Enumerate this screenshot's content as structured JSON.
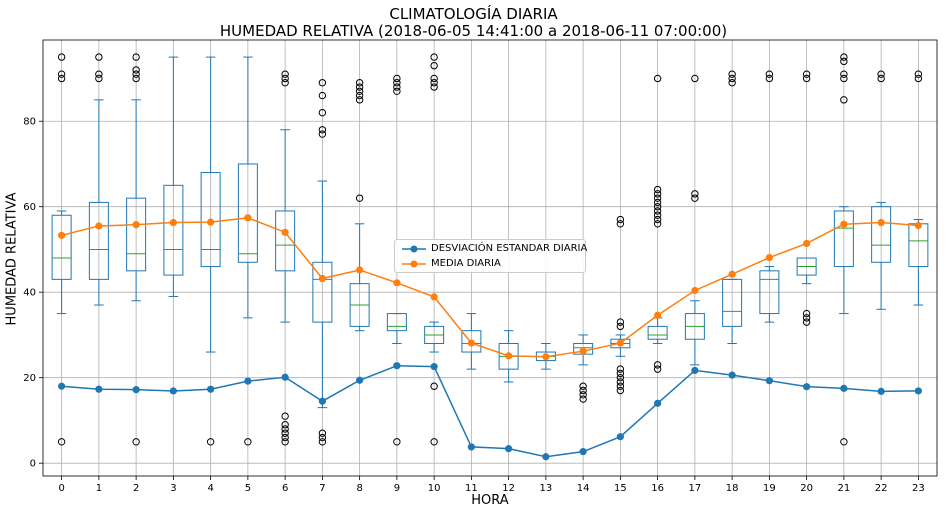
{
  "chart_data": {
    "type": "box+line",
    "title": "CLIMATOLOGÍA DIARIA",
    "subtitle": "HUMEDAD RELATIVA (2018-06-05 14:41:00 a 2018-06-11 07:00:00)",
    "xlabel": "HORA",
    "ylabel": "HUMEDAD RELATIVA",
    "categories": [
      "0",
      "1",
      "2",
      "3",
      "4",
      "5",
      "6",
      "7",
      "8",
      "9",
      "10",
      "11",
      "12",
      "13",
      "14",
      "15",
      "16",
      "17",
      "18",
      "19",
      "20",
      "21",
      "22",
      "23"
    ],
    "y_ticks": [
      0,
      20,
      40,
      60,
      80
    ],
    "ylim": [
      -3,
      99
    ],
    "grid": true,
    "legend_position": "center",
    "colors": {
      "box": "#1f77b4",
      "median": "#2ca02c",
      "std": "#1f77b4",
      "mean": "#ff7f0e"
    },
    "boxes": [
      {
        "q1": 43,
        "median": 48,
        "q3": 58,
        "whislo": 35,
        "whishi": 59,
        "fliers": [
          5,
          90,
          91,
          95
        ]
      },
      {
        "q1": 43,
        "median": 50,
        "q3": 61,
        "whislo": 37,
        "whishi": 85,
        "fliers": [
          90,
          91,
          95
        ]
      },
      {
        "q1": 45,
        "median": 49,
        "q3": 62,
        "whislo": 38,
        "whishi": 85,
        "fliers": [
          5,
          90,
          91,
          92,
          95
        ]
      },
      {
        "q1": 44,
        "median": 50,
        "q3": 65,
        "whislo": 39,
        "whishi": 95,
        "fliers": []
      },
      {
        "q1": 46,
        "median": 50,
        "q3": 68,
        "whislo": 26,
        "whishi": 95,
        "fliers": [
          5
        ]
      },
      {
        "q1": 47,
        "median": 49,
        "q3": 70,
        "whislo": 34,
        "whishi": 95,
        "fliers": [
          5
        ]
      },
      {
        "q1": 45,
        "median": 51,
        "q3": 59,
        "whislo": 33,
        "whishi": 78,
        "fliers": [
          5,
          6,
          7,
          8,
          9,
          11,
          89,
          90,
          91
        ]
      },
      {
        "q1": 33,
        "median": 43,
        "q3": 47,
        "whislo": 13,
        "whishi": 66,
        "fliers": [
          5,
          6,
          7,
          77,
          78,
          82,
          86,
          89
        ]
      },
      {
        "q1": 32,
        "median": 37,
        "q3": 42,
        "whislo": 31,
        "whishi": 56,
        "fliers": [
          62,
          85,
          86,
          87,
          88,
          89
        ]
      },
      {
        "q1": 31,
        "median": 32,
        "q3": 35,
        "whislo": 28,
        "whishi": 35,
        "fliers": [
          5,
          87,
          88,
          89,
          90
        ]
      },
      {
        "q1": 28,
        "median": 30,
        "q3": 32,
        "whislo": 26,
        "whishi": 33,
        "fliers": [
          5,
          18,
          88,
          89,
          90,
          93,
          95
        ]
      },
      {
        "q1": 26,
        "median": 28,
        "q3": 31,
        "whislo": 22,
        "whishi": 35,
        "fliers": []
      },
      {
        "q1": 22,
        "median": 25,
        "q3": 28,
        "whislo": 19,
        "whishi": 31,
        "fliers": []
      },
      {
        "q1": 24,
        "median": 25,
        "q3": 26,
        "whislo": 22,
        "whishi": 28,
        "fliers": []
      },
      {
        "q1": 25.5,
        "median": 27,
        "q3": 28,
        "whislo": 23,
        "whishi": 30,
        "fliers": [
          15,
          16,
          17,
          18
        ]
      },
      {
        "q1": 27,
        "median": 28,
        "q3": 29,
        "whislo": 25,
        "whishi": 30,
        "fliers": [
          17,
          18,
          19,
          20,
          21,
          22,
          32,
          33,
          56,
          57
        ]
      },
      {
        "q1": 29,
        "median": 30,
        "q3": 32,
        "whislo": 28,
        "whishi": 34,
        "fliers": [
          22,
          23,
          56,
          57,
          58,
          59,
          60,
          61,
          62,
          63,
          64,
          90
        ]
      },
      {
        "q1": 29,
        "median": 32,
        "q3": 35,
        "whislo": 23,
        "whishi": 38,
        "fliers": [
          62,
          63,
          90
        ]
      },
      {
        "q1": 32,
        "median": 35.5,
        "q3": 43,
        "whislo": 28,
        "whishi": 43,
        "fliers": [
          89,
          90,
          91
        ]
      },
      {
        "q1": 35,
        "median": 43,
        "q3": 45,
        "whislo": 33,
        "whishi": 46,
        "fliers": [
          90,
          91
        ]
      },
      {
        "q1": 44,
        "median": 46,
        "q3": 48,
        "whislo": 42,
        "whishi": 48,
        "fliers": [
          33,
          34,
          35,
          90,
          91
        ]
      },
      {
        "q1": 46,
        "median": 55,
        "q3": 59,
        "whislo": 35,
        "whishi": 60,
        "fliers": [
          5,
          85,
          90,
          91,
          94,
          95
        ]
      },
      {
        "q1": 47,
        "median": 51,
        "q3": 60,
        "whislo": 36,
        "whishi": 61,
        "fliers": [
          90,
          91
        ]
      },
      {
        "q1": 46,
        "median": 52,
        "q3": 56,
        "whislo": 37,
        "whishi": 57,
        "fliers": [
          90,
          91
        ]
      }
    ],
    "series": [
      {
        "name": "DESVIACIÓN ESTANDAR DIARIA",
        "color": "#1f77b4",
        "values": [
          18.0,
          17.3,
          17.2,
          16.9,
          17.3,
          19.2,
          20.1,
          14.5,
          19.4,
          22.8,
          22.6,
          3.8,
          3.4,
          1.5,
          2.7,
          6.2,
          14.0,
          21.7,
          20.6,
          19.3,
          17.9,
          17.5,
          16.8,
          16.9
        ]
      },
      {
        "name": "MEDIA DIARIA",
        "color": "#ff7f0e",
        "values": [
          53.3,
          55.5,
          55.8,
          56.3,
          56.4,
          57.4,
          54.0,
          43.2,
          45.2,
          42.2,
          38.9,
          28.1,
          25.1,
          24.9,
          26.2,
          28.1,
          34.6,
          40.4,
          44.2,
          48.1,
          51.4,
          55.9,
          56.3,
          55.6
        ]
      }
    ]
  }
}
